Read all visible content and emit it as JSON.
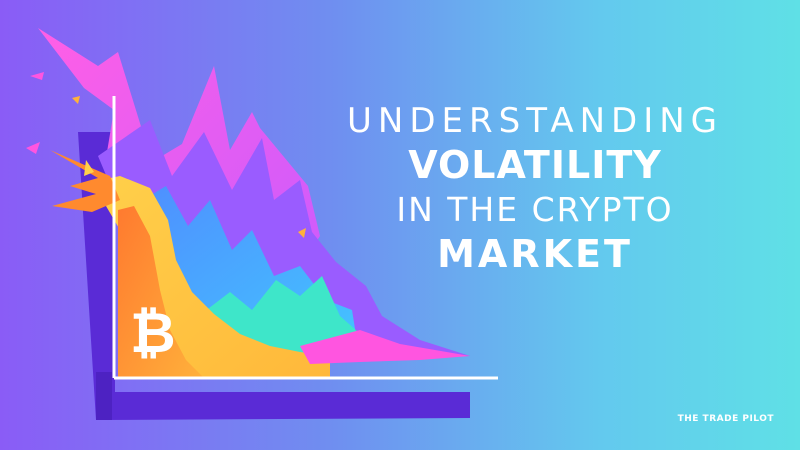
{
  "headline": {
    "line1": "UNDERSTANDING",
    "line2": "VOLATILITY",
    "line3": "IN THE CRYPTO",
    "line4": "MARKET"
  },
  "brand": "THE TRADE PILOT",
  "illustration": {
    "coin_symbol": "₿",
    "icons": [
      "bitcoin-icon"
    ]
  },
  "colors": {
    "bg_left": "#8a5cf6",
    "bg_right": "#5fe0e6",
    "shadow": "#5a2bd6",
    "magenta": "#ff4fe0",
    "violet": "#9a5cff",
    "orange": "#ff8a2e",
    "yellow": "#ffc93a",
    "blue": "#4fa0ff",
    "teal": "#3ee6c9"
  }
}
